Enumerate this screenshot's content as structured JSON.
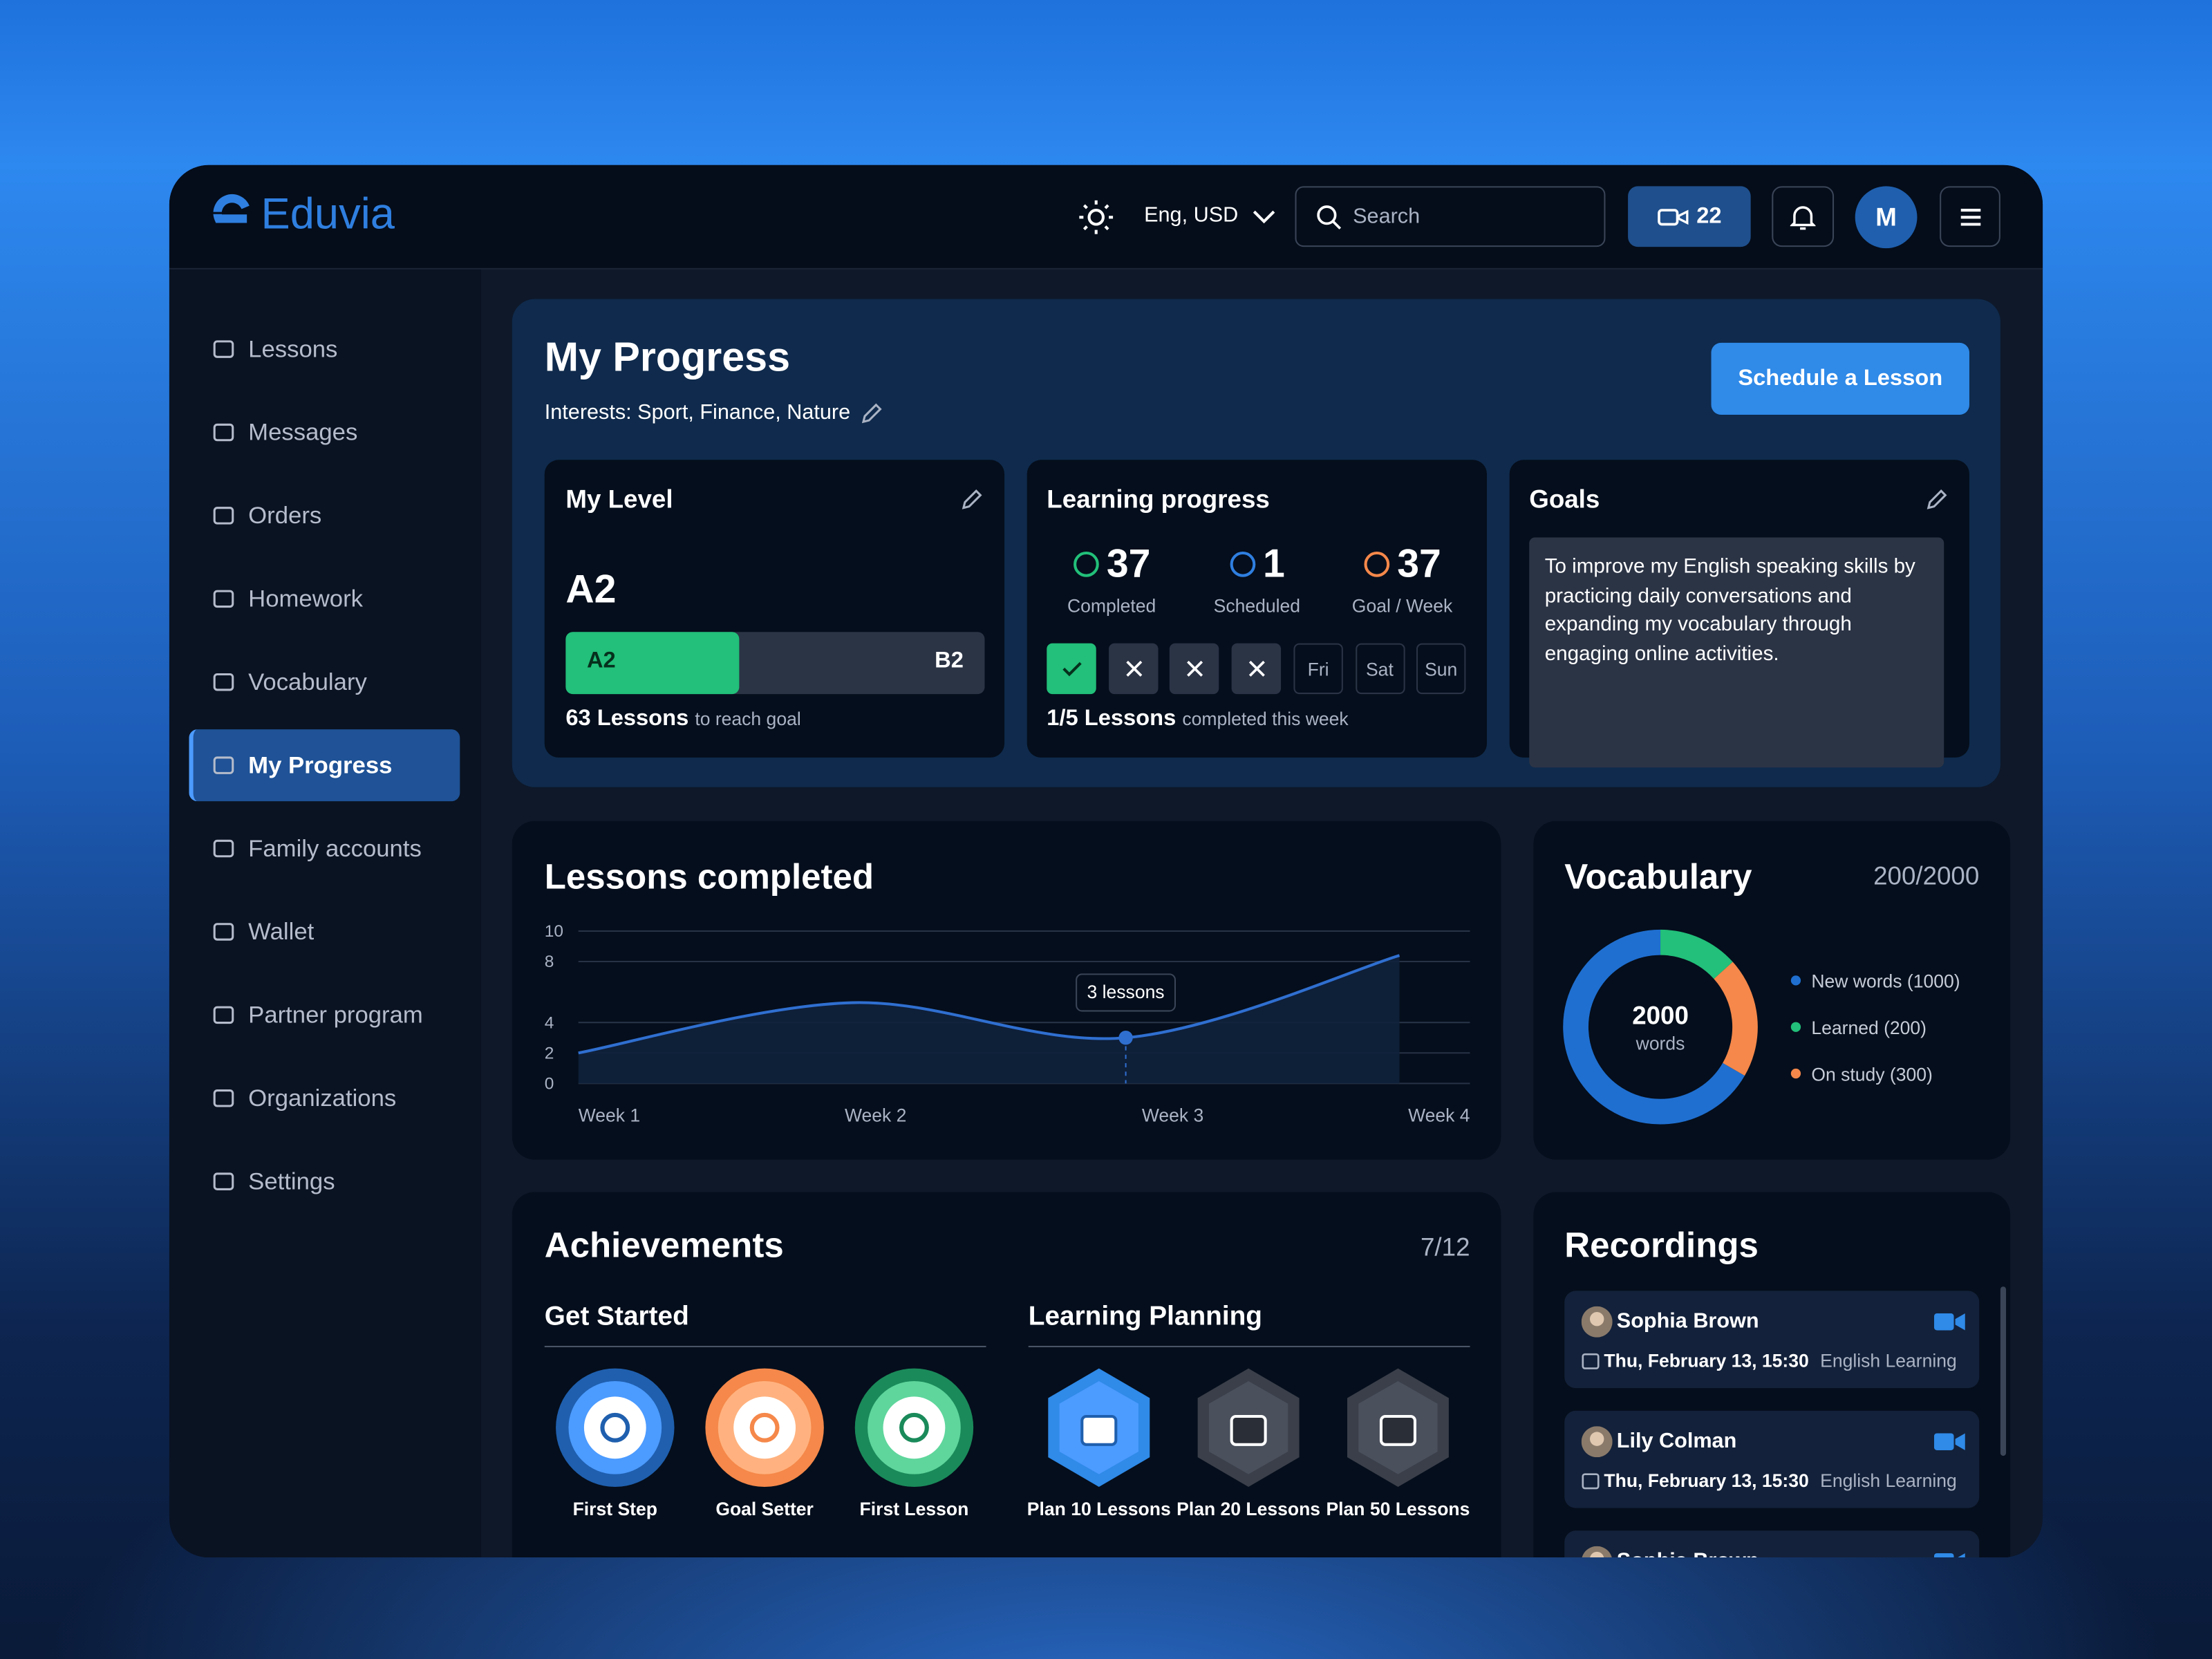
{
  "app": {
    "brand": "Eduvia",
    "locale": "Eng, USD",
    "search_placeholder": "Search",
    "video_count": "22",
    "avatar": "M"
  },
  "nav": {
    "items": [
      "Lessons",
      "Messages",
      "Orders",
      "Homework",
      "Vocabulary",
      "My Progress",
      "Family accounts",
      "Wallet",
      "Partner program",
      "Organizations",
      "Settings"
    ],
    "active": "My Progress"
  },
  "progress": {
    "title": "My Progress",
    "interests": "Interests: Sport, Finance, Nature",
    "button": "Schedule a Lesson",
    "level": {
      "title": "My Level",
      "current": "A2",
      "bar_from": "A2",
      "bar_to": "B2",
      "lessons": "63 Lessons",
      "lessons_note": "to reach goal"
    },
    "learning": {
      "title": "Learning progress",
      "stats": [
        {
          "value": "37",
          "label": "Completed"
        },
        {
          "value": "1",
          "label": "Scheduled"
        },
        {
          "value": "37",
          "label": "Goal / Week"
        }
      ],
      "week_days": [
        "Fri",
        "Sat",
        "Sun"
      ],
      "lessons": "1/5 Lessons",
      "lessons_note": "completed this week"
    },
    "goals": {
      "title": "Goals",
      "text": "To improve my English speaking skills by practicing daily conversations and expanding my vocabulary through engaging online activities."
    }
  },
  "chart_data": [
    {
      "type": "line",
      "title": "Lessons completed",
      "categories": [
        "Week 1",
        "Week 2",
        "Week 3",
        "Week 4"
      ],
      "values": [
        2,
        5.3,
        3,
        8.4
      ],
      "color": "#2f6fd0",
      "ylim": [
        0,
        10
      ],
      "yticks": [
        0,
        2,
        4,
        8,
        10
      ],
      "grid": true,
      "annotation": "3 lessons"
    },
    {
      "type": "donut",
      "title": "Vocabulary",
      "summary": "200/2000",
      "center_value": "2000",
      "center_label": "words",
      "categories": [
        "New words (1000)",
        "Learned (200)",
        "On study (300)"
      ],
      "values": [
        1000,
        200,
        300
      ],
      "colors": [
        "#1f6fd0",
        "#22c07a",
        "#f5884a"
      ]
    }
  ],
  "achievements": {
    "title": "Achievements",
    "count": "7/12",
    "groups": [
      {
        "title": "Get Started",
        "items": [
          "First Step",
          "Goal Setter",
          "First Lesson"
        ]
      },
      {
        "title": "Learning Planning",
        "items": [
          "Plan 10 Lessons",
          "Plan 20 Lessons",
          "Plan 50 Lessons"
        ]
      }
    ]
  },
  "recordings": {
    "title": "Recordings",
    "items": [
      {
        "name": "Sophia Brown",
        "date": "Thu, February 13, 15:30",
        "topic": "English Learning"
      },
      {
        "name": "Lily Colman",
        "date": "Thu, February 13, 15:30",
        "topic": "English Learning"
      },
      {
        "name": "Sophia Brown"
      }
    ]
  }
}
